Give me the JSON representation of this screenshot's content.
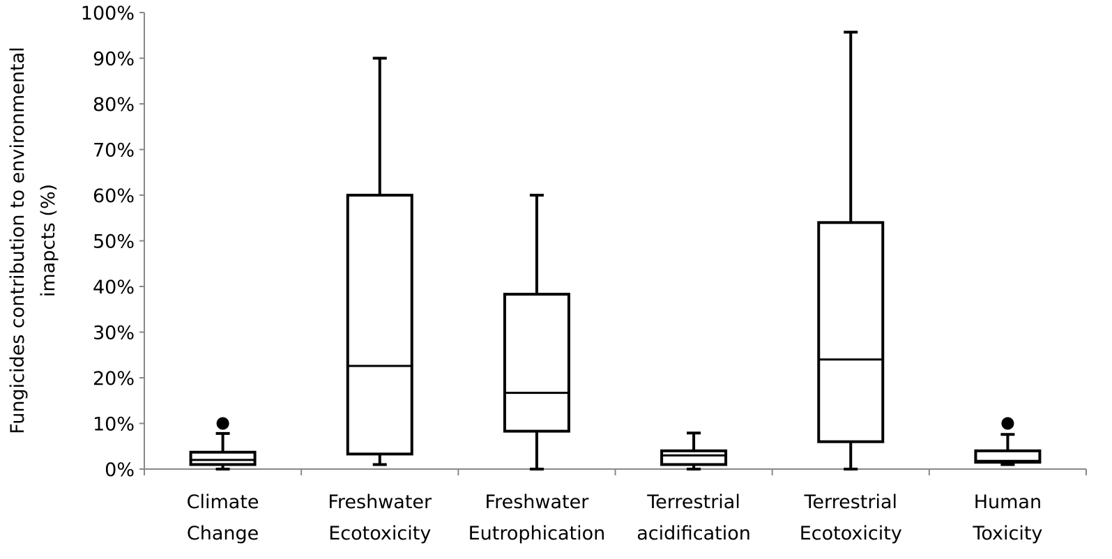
{
  "chart_data": {
    "type": "boxplot",
    "title": "",
    "xlabel": "",
    "ylabel": [
      "Fungicides contribution  to environmental",
      "imapcts (%)"
    ],
    "ylim": [
      0,
      100
    ],
    "yticks": [
      0,
      10,
      20,
      30,
      40,
      50,
      60,
      70,
      80,
      90,
      100
    ],
    "ytick_labels": [
      "0%",
      "10%",
      "20%",
      "30%",
      "40%",
      "50%",
      "60%",
      "70%",
      "80%",
      "90%",
      "100%"
    ],
    "grid": false,
    "legend": null,
    "categories": [
      [
        "Climate",
        "Change"
      ],
      [
        "Freshwater",
        "Ecotoxicity"
      ],
      [
        "Freshwater",
        "Eutrophication"
      ],
      [
        "Terrestrial",
        "acidification"
      ],
      [
        "Terrestrial",
        "Ecotoxicity"
      ],
      [
        "Human",
        "Toxicity"
      ]
    ],
    "boxes": [
      {
        "name": "Climate Change",
        "min": 0,
        "q1": 1,
        "median": 2,
        "q3": 3.7,
        "max": 7.8,
        "outliers": [
          10
        ]
      },
      {
        "name": "Freshwater Ecotoxicity",
        "min": 1,
        "q1": 3.3,
        "median": 22.6,
        "q3": 60,
        "max": 90,
        "outliers": []
      },
      {
        "name": "Freshwater Eutrophication",
        "min": 0,
        "q1": 8.3,
        "median": 16.7,
        "q3": 38.3,
        "max": 60,
        "outliers": []
      },
      {
        "name": "Terrestrial acidification",
        "min": 0,
        "q1": 1,
        "median": 3,
        "q3": 4,
        "max": 7.9,
        "outliers": []
      },
      {
        "name": "Terrestrial Ecotoxicity",
        "min": 0,
        "q1": 6,
        "median": 24,
        "q3": 54,
        "max": 95.7,
        "outliers": []
      },
      {
        "name": "Human Toxicity",
        "min": 1,
        "q1": 1.5,
        "median": 1.8,
        "q3": 4,
        "max": 7.6,
        "outliers": [
          10
        ]
      }
    ]
  }
}
